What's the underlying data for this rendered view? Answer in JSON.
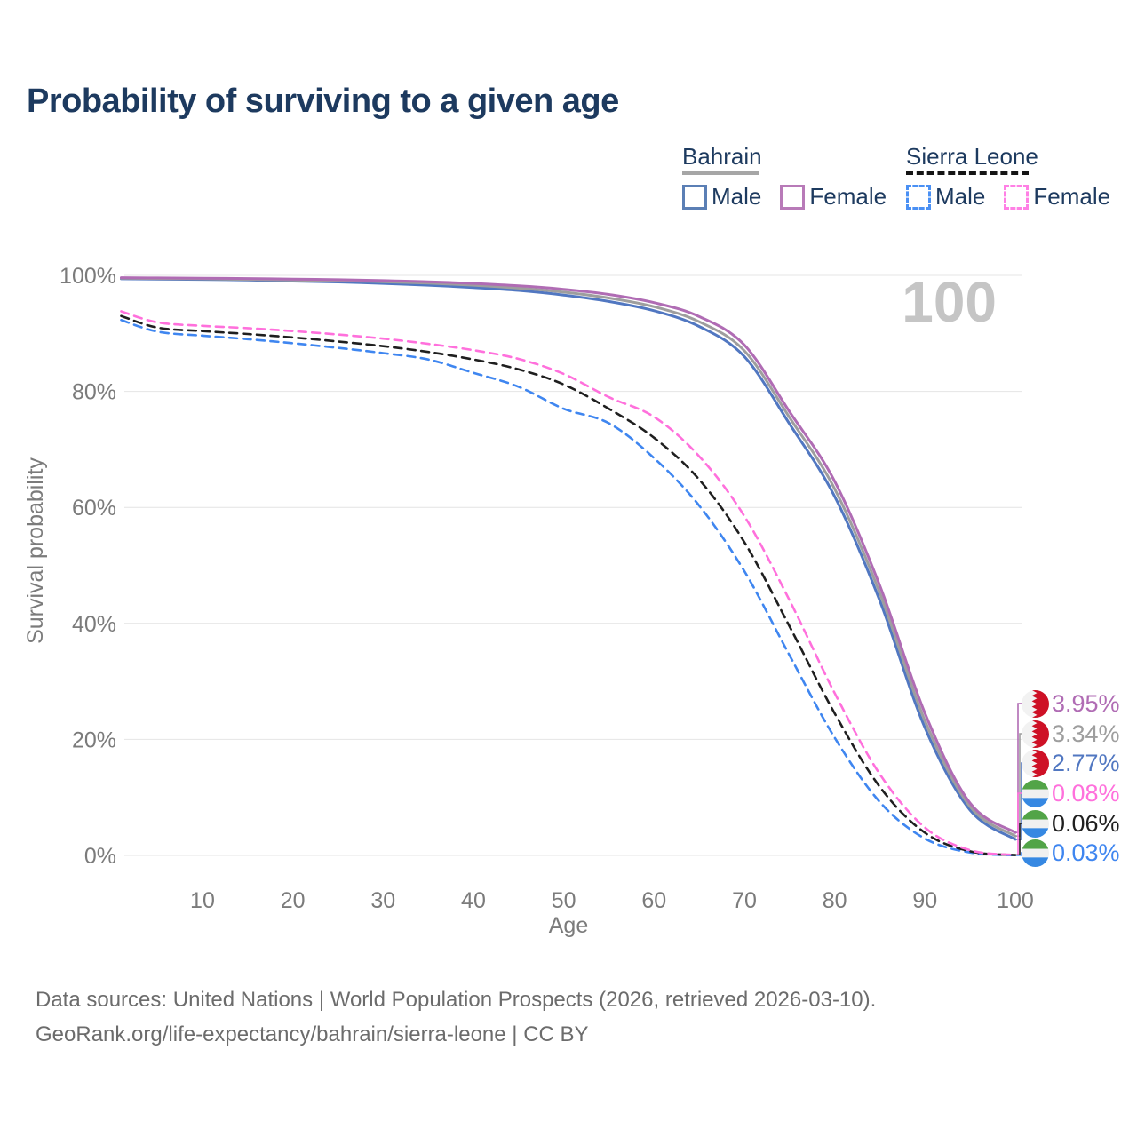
{
  "title": "Probability of surviving to a given age",
  "legend": {
    "groups": [
      {
        "name": "Bahrain",
        "underline_style": "solid",
        "underline_color": "#a6a6a6",
        "underline_width": 86,
        "items": [
          {
            "label": "Male",
            "color": "#5b7fb5",
            "dashed": false
          },
          {
            "label": "Female",
            "color": "#b87ab8",
            "dashed": false
          }
        ]
      },
      {
        "name": "Sierra Leone",
        "underline_style": "dashed",
        "underline_color": "#151515",
        "underline_width": 138,
        "items": [
          {
            "label": "Male",
            "color": "#4a90f4",
            "dashed": true
          },
          {
            "label": "Female",
            "color": "#ff80e5",
            "dashed": true
          }
        ]
      }
    ]
  },
  "watermark": "100",
  "axes": {
    "y_label": "Survival probability",
    "y_ticks": [
      "0%",
      "20%",
      "40%",
      "60%",
      "80%",
      "100%"
    ],
    "x_label": "Age",
    "x_ticks": [
      "10",
      "20",
      "30",
      "40",
      "50",
      "60",
      "70",
      "80",
      "90",
      "100"
    ]
  },
  "end_labels": [
    {
      "value": "3.95%",
      "color": "#b06cb4",
      "flag": "bahrain"
    },
    {
      "value": "3.34%",
      "color": "#9e9e9e",
      "flag": "bahrain"
    },
    {
      "value": "2.77%",
      "color": "#5177c1",
      "flag": "bahrain"
    },
    {
      "value": "0.08%",
      "color": "#ff70dc",
      "flag": "sierra-leone"
    },
    {
      "value": "0.06%",
      "color": "#1f1f1f",
      "flag": "sierra-leone"
    },
    {
      "value": "0.03%",
      "color": "#3f86f0",
      "flag": "sierra-leone"
    }
  ],
  "footer": {
    "line1": "Data sources: United Nations | World Population Prospects (2026, retrieved 2026-03-10).",
    "line2": "GeoRank.org/life-expectancy/bahrain/sierra-leone | CC BY"
  },
  "chart_data": {
    "type": "line",
    "title": "Probability of surviving to a given age",
    "xlabel": "Age",
    "ylabel": "Survival probability",
    "xlim": [
      0,
      100
    ],
    "ylim": [
      0,
      100
    ],
    "x_ticks": [
      10,
      20,
      30,
      40,
      50,
      60,
      70,
      80,
      90,
      100
    ],
    "y_ticks_percent": [
      0,
      20,
      40,
      60,
      80,
      100
    ],
    "grid": true,
    "legend_position": "top-right",
    "hovered_age": 100,
    "series": [
      {
        "name": "Bahrain Female",
        "country": "Bahrain",
        "sex": "Female",
        "color": "#b06cb4",
        "dashed": false,
        "end_label": "3.95%",
        "points": [
          [
            1,
            99.6
          ],
          [
            5,
            99.55
          ],
          [
            10,
            99.5
          ],
          [
            15,
            99.45
          ],
          [
            20,
            99.35
          ],
          [
            25,
            99.25
          ],
          [
            30,
            99.1
          ],
          [
            35,
            98.9
          ],
          [
            40,
            98.6
          ],
          [
            45,
            98.2
          ],
          [
            50,
            97.6
          ],
          [
            55,
            96.7
          ],
          [
            60,
            95.3
          ],
          [
            65,
            92.9
          ],
          [
            70,
            88.0
          ],
          [
            75,
            76.5
          ],
          [
            80,
            64.5
          ],
          [
            85,
            46.5
          ],
          [
            90,
            24.5
          ],
          [
            95,
            9.0
          ],
          [
            100,
            3.95
          ]
        ]
      },
      {
        "name": "Bahrain",
        "country": "Bahrain",
        "sex": "Both",
        "color": "#9e9e9e",
        "dashed": false,
        "end_label": "3.34%",
        "points": [
          [
            1,
            99.5
          ],
          [
            5,
            99.45
          ],
          [
            10,
            99.4
          ],
          [
            15,
            99.3
          ],
          [
            20,
            99.2
          ],
          [
            25,
            99.05
          ],
          [
            30,
            98.9
          ],
          [
            35,
            98.65
          ],
          [
            40,
            98.3
          ],
          [
            45,
            97.8
          ],
          [
            50,
            97.1
          ],
          [
            55,
            96.1
          ],
          [
            60,
            94.6
          ],
          [
            65,
            92.0
          ],
          [
            70,
            87.0
          ],
          [
            75,
            75.5
          ],
          [
            80,
            63.2
          ],
          [
            85,
            45.2
          ],
          [
            90,
            23.2
          ],
          [
            95,
            8.4
          ],
          [
            100,
            3.34
          ]
        ]
      },
      {
        "name": "Bahrain Male",
        "country": "Bahrain",
        "sex": "Male",
        "color": "#5177c1",
        "dashed": false,
        "end_label": "2.77%",
        "points": [
          [
            1,
            99.4
          ],
          [
            5,
            99.35
          ],
          [
            10,
            99.3
          ],
          [
            15,
            99.2
          ],
          [
            20,
            99.0
          ],
          [
            25,
            98.85
          ],
          [
            30,
            98.6
          ],
          [
            35,
            98.3
          ],
          [
            40,
            97.9
          ],
          [
            45,
            97.4
          ],
          [
            50,
            96.6
          ],
          [
            55,
            95.5
          ],
          [
            60,
            93.9
          ],
          [
            65,
            91.2
          ],
          [
            70,
            86.0
          ],
          [
            75,
            74.4
          ],
          [
            80,
            61.9
          ],
          [
            85,
            43.9
          ],
          [
            90,
            22.0
          ],
          [
            95,
            7.8
          ],
          [
            100,
            2.77
          ]
        ]
      },
      {
        "name": "Sierra Leone Female",
        "country": "Sierra Leone",
        "sex": "Female",
        "color": "#ff70dc",
        "dashed": true,
        "end_label": "0.08%",
        "points": [
          [
            1,
            93.8
          ],
          [
            5,
            91.9
          ],
          [
            10,
            91.3
          ],
          [
            15,
            90.9
          ],
          [
            20,
            90.4
          ],
          [
            25,
            89.8
          ],
          [
            30,
            89.1
          ],
          [
            35,
            88.2
          ],
          [
            40,
            87.1
          ],
          [
            45,
            85.6
          ],
          [
            50,
            83.0
          ],
          [
            55,
            79.0
          ],
          [
            60,
            75.6
          ],
          [
            65,
            68.8
          ],
          [
            70,
            58.5
          ],
          [
            75,
            44.0
          ],
          [
            80,
            28.0
          ],
          [
            85,
            14.0
          ],
          [
            90,
            4.8
          ],
          [
            95,
            0.9
          ],
          [
            100,
            0.08
          ]
        ]
      },
      {
        "name": "Sierra Leone",
        "country": "Sierra Leone",
        "sex": "Both",
        "color": "#1f1f1f",
        "dashed": true,
        "end_label": "0.06%",
        "points": [
          [
            1,
            93.0
          ],
          [
            5,
            91.0
          ],
          [
            10,
            90.4
          ],
          [
            15,
            89.9
          ],
          [
            20,
            89.3
          ],
          [
            25,
            88.6
          ],
          [
            30,
            87.8
          ],
          [
            35,
            86.8
          ],
          [
            40,
            85.5
          ],
          [
            45,
            83.8
          ],
          [
            50,
            81.2
          ],
          [
            55,
            77.0
          ],
          [
            60,
            72.0
          ],
          [
            65,
            64.8
          ],
          [
            70,
            54.0
          ],
          [
            75,
            39.5
          ],
          [
            80,
            24.5
          ],
          [
            85,
            11.8
          ],
          [
            90,
            3.9
          ],
          [
            95,
            0.7
          ],
          [
            100,
            0.06
          ]
        ]
      },
      {
        "name": "Sierra Leone Male",
        "country": "Sierra Leone",
        "sex": "Male",
        "color": "#3f86f0",
        "dashed": true,
        "end_label": "0.03%",
        "points": [
          [
            1,
            92.3
          ],
          [
            5,
            90.3
          ],
          [
            10,
            89.6
          ],
          [
            15,
            89.0
          ],
          [
            20,
            88.3
          ],
          [
            25,
            87.5
          ],
          [
            30,
            86.6
          ],
          [
            35,
            85.5
          ],
          [
            40,
            83.2
          ],
          [
            45,
            80.8
          ],
          [
            50,
            77.0
          ],
          [
            55,
            74.5
          ],
          [
            60,
            68.5
          ],
          [
            65,
            60.3
          ],
          [
            70,
            49.0
          ],
          [
            75,
            34.5
          ],
          [
            80,
            20.3
          ],
          [
            85,
            9.2
          ],
          [
            90,
            2.9
          ],
          [
            95,
            0.5
          ],
          [
            100,
            0.03
          ]
        ]
      }
    ]
  }
}
